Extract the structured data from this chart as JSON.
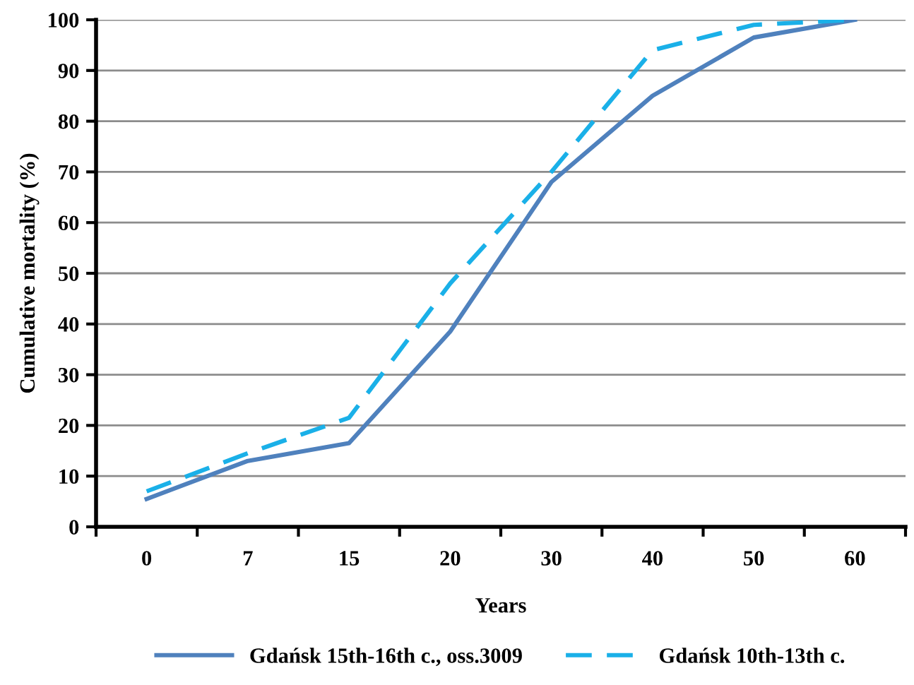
{
  "chart_data": {
    "type": "line",
    "xlabel": "Years",
    "ylabel": "Cumulative mortality (%)",
    "categories": [
      "0",
      "7",
      "15",
      "20",
      "30",
      "40",
      "50",
      "60"
    ],
    "series": [
      {
        "name": "Gdańsk 15th-16th c., oss.3009",
        "color": "#4f81bd",
        "line_style": "solid",
        "values": [
          5.5,
          13,
          16.5,
          38.5,
          68,
          85,
          96.5,
          100
        ]
      },
      {
        "name": "Gdańsk 10th-13th c.",
        "color": "#1ab0e8",
        "line_style": "dashed",
        "values": [
          7,
          14.5,
          21.5,
          48,
          70,
          94,
          99,
          100
        ]
      }
    ],
    "ylim": [
      0,
      100
    ],
    "yticks": [
      0,
      10,
      20,
      30,
      40,
      50,
      60,
      70,
      80,
      90,
      100
    ],
    "grid": "y",
    "legend": "bottom",
    "marker": "none"
  }
}
